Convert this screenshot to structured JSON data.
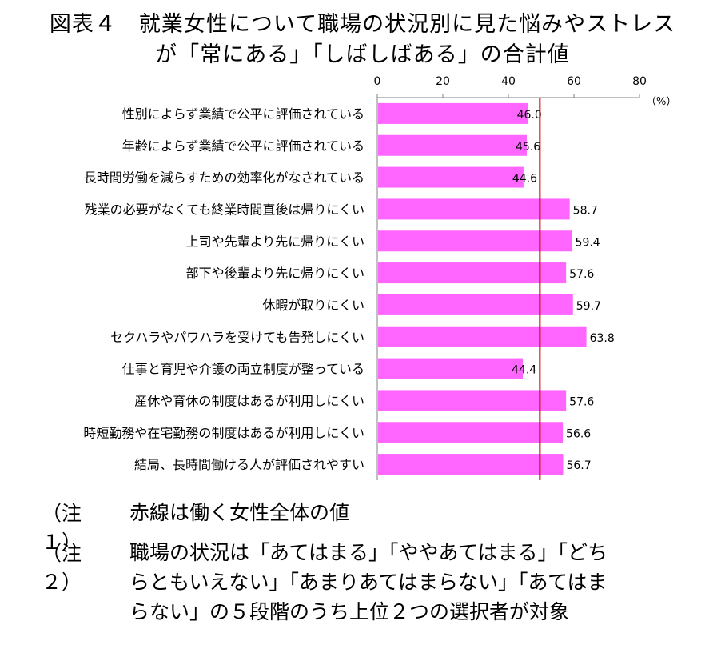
{
  "title": {
    "line1": "図表４　就業女性について職場の状況別に見た悩みやストレス",
    "line2": "が「常にある」「しばしばある」の合計値"
  },
  "chart_data": {
    "type": "bar",
    "orientation": "horizontal",
    "unit_label": "（%）",
    "xlim": [
      0,
      80
    ],
    "ticks": [
      0,
      20,
      40,
      60,
      80
    ],
    "categories": [
      "性別によらず業績で公平に評価されている",
      "年齢によらず業績で公平に評価されている",
      "長時間労働を減らすための効率化がなされている",
      "残業の必要がなくても終業時間直後は帰りにくい",
      "上司や先輩より先に帰りにくい",
      "部下や後輩より先に帰りにくい",
      "休暇が取りにくい",
      "セクハラやパワハラを受けても告発しにくい",
      "仕事と育児や介護の両立制度が整っている",
      "産休や育休の制度はあるが利用しにくい",
      "時短勤務や在宅勤務の制度はあるが利用しにくい",
      "結局、長時間働ける人が評価されやすい"
    ],
    "values": [
      46.0,
      45.6,
      44.6,
      58.7,
      59.4,
      57.6,
      59.7,
      63.8,
      44.4,
      57.6,
      56.6,
      56.7
    ],
    "value_labels": [
      "46.0",
      "45.6",
      "44.6",
      "58.7",
      "59.4",
      "57.6",
      "59.7",
      "63.8",
      "44.4",
      "57.6",
      "56.6",
      "56.7"
    ],
    "reference_line": 49.6,
    "bar_color": "#ff66ff",
    "reference_line_color": "#cc0000"
  },
  "notes": [
    {
      "label": "（注１）",
      "lines": [
        "赤線は働く女性全体の値"
      ]
    },
    {
      "label": "（注２）",
      "lines": [
        "職場の状況は「あてはまる」「ややあてはまる」「どち",
        "らともいえない」「あまりあてはまらない」「あてはま",
        "らない」の５段階のうち上位２つの選択者が対象"
      ]
    }
  ]
}
